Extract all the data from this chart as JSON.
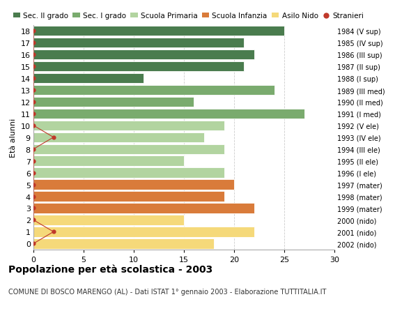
{
  "ages": [
    18,
    17,
    16,
    15,
    14,
    13,
    12,
    11,
    10,
    9,
    8,
    7,
    6,
    5,
    4,
    3,
    2,
    1,
    0
  ],
  "bar_values": [
    25,
    21,
    22,
    21,
    11,
    24,
    16,
    27,
    19,
    17,
    19,
    15,
    19,
    20,
    19,
    22,
    15,
    22,
    18
  ],
  "stranieri_values": [
    0,
    0,
    0,
    0,
    0,
    0,
    0,
    0,
    0,
    2,
    0,
    0,
    0,
    0,
    0,
    0,
    0,
    2,
    0
  ],
  "right_labels": [
    "1984 (V sup)",
    "1985 (IV sup)",
    "1986 (III sup)",
    "1987 (II sup)",
    "1988 (I sup)",
    "1989 (III med)",
    "1990 (II med)",
    "1991 (I med)",
    "1992 (V ele)",
    "1993 (IV ele)",
    "1994 (III ele)",
    "1995 (II ele)",
    "1996 (I ele)",
    "1997 (mater)",
    "1998 (mater)",
    "1999 (mater)",
    "2000 (nido)",
    "2001 (nido)",
    "2002 (nido)"
  ],
  "bar_colors": [
    "#4a7c4e",
    "#4a7c4e",
    "#4a7c4e",
    "#4a7c4e",
    "#4a7c4e",
    "#7aab6e",
    "#7aab6e",
    "#7aab6e",
    "#b2d4a0",
    "#b2d4a0",
    "#b2d4a0",
    "#b2d4a0",
    "#b2d4a0",
    "#d97b3a",
    "#d97b3a",
    "#d97b3a",
    "#f5d97a",
    "#f5d97a",
    "#f5d97a"
  ],
  "legend_labels": [
    "Sec. II grado",
    "Sec. I grado",
    "Scuola Primaria",
    "Scuola Infanzia",
    "Asilo Nido",
    "Stranieri"
  ],
  "legend_colors": [
    "#4a7c4e",
    "#7aab6e",
    "#b2d4a0",
    "#d97b3a",
    "#f5d97a",
    "#c0392b"
  ],
  "stranieri_color": "#c0392b",
  "ylabel": "Età alunni",
  "title": "Popolazione per età scolastica - 2003",
  "subtitle": "COMUNE DI BOSCO MARENGO (AL) - Dati ISTAT 1° gennaio 2003 - Elaborazione TUTTITALIA.IT",
  "xlim": [
    0,
    30
  ],
  "background_color": "#ffffff",
  "grid_color": "#cccccc"
}
